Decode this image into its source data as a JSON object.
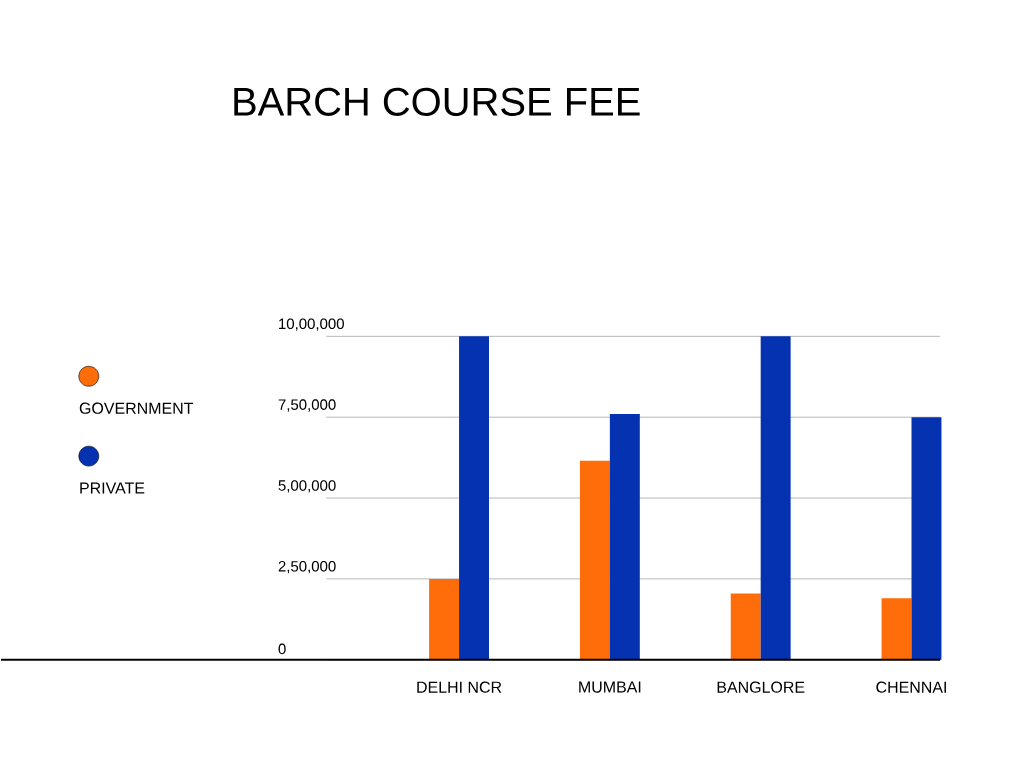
{
  "chart_data": {
    "type": "bar",
    "title": "BARCH COURSE FEE",
    "categories": [
      "DELHI NCR",
      "MUMBAI",
      "BANGLORE",
      "CHENNAI"
    ],
    "series": [
      {
        "name": "GOVERNMENT",
        "color": "#ff6d0a",
        "values": [
          250000,
          615000,
          205000,
          190000
        ]
      },
      {
        "name": "PRIVATE",
        "color": "#0432b0",
        "values": [
          1000000,
          760000,
          1000000,
          750000
        ]
      }
    ],
    "ylim": [
      0,
      1000000
    ],
    "yticks": [
      {
        "value": 0,
        "label": "0"
      },
      {
        "value": 250000,
        "label": "2,50,000"
      },
      {
        "value": 500000,
        "label": "5,00,000"
      },
      {
        "value": 750000,
        "label": "7,50,000"
      },
      {
        "value": 1000000,
        "label": "10,00,000"
      }
    ],
    "grid": "y",
    "legend": "left"
  }
}
